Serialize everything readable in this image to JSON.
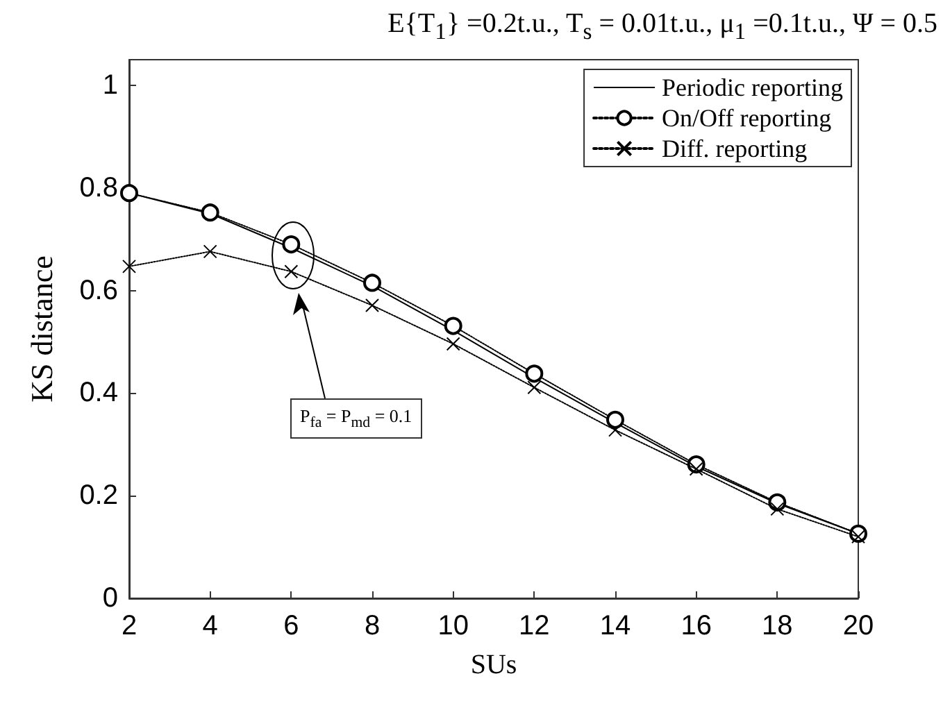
{
  "chart_data": {
    "type": "line",
    "title": "E{T$_{1}$} =0.2t.u., T$_{s}$ = 0.01t.u., μ$_{1}$ =0.1t.u., Ψ =  0.5",
    "xlabel": "SUs",
    "ylabel": "KS distance",
    "x": [
      2,
      4,
      6,
      8,
      10,
      12,
      14,
      16,
      18,
      20
    ],
    "series": [
      {
        "name": "Periodic reporting",
        "color": "#000000",
        "line_style": "solid",
        "marker": "none",
        "values": [
          0.79,
          0.75,
          0.683,
          0.609,
          0.522,
          0.43,
          0.342,
          0.257,
          0.185,
          0.126
        ]
      },
      {
        "name": "On/Off reporting",
        "color": "#000000",
        "line_style": "dotted",
        "marker": "circle",
        "values": [
          0.79,
          0.752,
          0.69,
          0.615,
          0.531,
          0.438,
          0.348,
          0.261,
          0.187,
          0.126
        ]
      },
      {
        "name": "Diff. reporting",
        "color": "#000000",
        "line_style": "dotted",
        "marker": "cross",
        "values": [
          0.647,
          0.676,
          0.637,
          0.571,
          0.496,
          0.411,
          0.328,
          0.252,
          0.174,
          0.12
        ]
      }
    ],
    "xlim": [
      2,
      20
    ],
    "xticks": [
      2,
      4,
      6,
      8,
      10,
      12,
      14,
      16,
      18,
      20
    ],
    "ylim": [
      0,
      1.05
    ],
    "yticks": [
      0,
      0.2,
      0.4,
      0.6,
      0.8,
      1
    ],
    "grid": false,
    "legend": "top right",
    "annotations": [
      "P$_{fa}$ = P$_{md}$ = 0.1"
    ]
  }
}
